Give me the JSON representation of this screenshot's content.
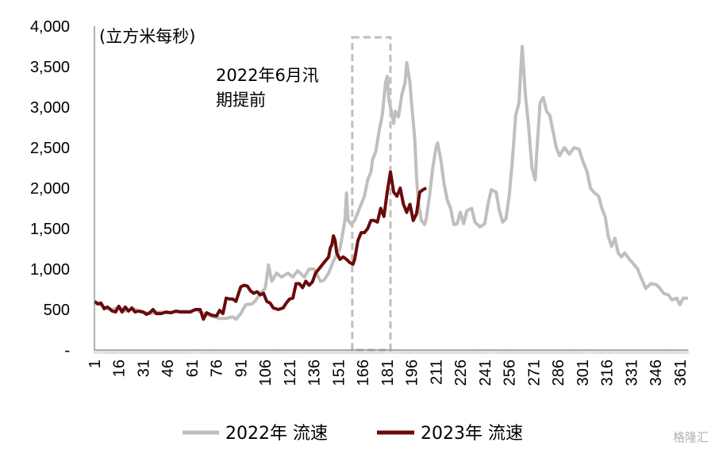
{
  "chart_data": {
    "type": "line",
    "unit_label": "(立方米每秒)",
    "annotation": "2022年6月汛期提前",
    "annotation_lines": [
      "2022年6月汛",
      "期提前"
    ],
    "ylim": [
      0,
      4000
    ],
    "yticks": [
      0,
      500,
      1000,
      1500,
      2000,
      2500,
      3000,
      3500,
      4000
    ],
    "ytick_labels": [
      "-",
      "500",
      "1,000",
      "1,500",
      "2,000",
      "2,500",
      "3,000",
      "3,500",
      "4,000"
    ],
    "xlim": [
      1,
      366
    ],
    "xticks": [
      1,
      16,
      31,
      46,
      61,
      76,
      91,
      106,
      121,
      136,
      151,
      166,
      181,
      196,
      211,
      226,
      241,
      256,
      271,
      286,
      301,
      316,
      331,
      346,
      361
    ],
    "xtick_labels": [
      "1",
      "16",
      "31",
      "46",
      "61",
      "76",
      "91",
      "106",
      "121",
      "136",
      "151",
      "166",
      "181",
      "196",
      "211",
      "226",
      "241",
      "256",
      "271",
      "286",
      "301",
      "316",
      "331",
      "346",
      "361"
    ],
    "highlight_range": [
      161,
      183
    ],
    "grid": false,
    "legend_position": "bottom",
    "series": [
      {
        "name": "2022年 流速",
        "color": "#bfbfbf",
        "points": [
          [
            1,
            600
          ],
          [
            4,
            570
          ],
          [
            8,
            520
          ],
          [
            12,
            500
          ],
          [
            16,
            530
          ],
          [
            20,
            480
          ],
          [
            25,
            510
          ],
          [
            30,
            470
          ],
          [
            35,
            450
          ],
          [
            40,
            470
          ],
          [
            45,
            460
          ],
          [
            50,
            470
          ],
          [
            55,
            480
          ],
          [
            60,
            480
          ],
          [
            63,
            500
          ],
          [
            66,
            470
          ],
          [
            70,
            440
          ],
          [
            74,
            410
          ],
          [
            78,
            390
          ],
          [
            82,
            390
          ],
          [
            86,
            410
          ],
          [
            88,
            380
          ],
          [
            91,
            450
          ],
          [
            94,
            560
          ],
          [
            98,
            570
          ],
          [
            100,
            610
          ],
          [
            103,
            700
          ],
          [
            106,
            760
          ],
          [
            108,
            1050
          ],
          [
            110,
            850
          ],
          [
            113,
            950
          ],
          [
            116,
            900
          ],
          [
            120,
            950
          ],
          [
            123,
            900
          ],
          [
            126,
            980
          ],
          [
            130,
            900
          ],
          [
            133,
            1000
          ],
          [
            136,
            1000
          ],
          [
            140,
            850
          ],
          [
            142,
            860
          ],
          [
            145,
            950
          ],
          [
            148,
            1100
          ],
          [
            152,
            1250
          ],
          [
            155,
            1600
          ],
          [
            156,
            1940
          ],
          [
            157,
            1600
          ],
          [
            159,
            1550
          ],
          [
            161,
            1600
          ],
          [
            163,
            1700
          ],
          [
            165,
            1800
          ],
          [
            167,
            1900
          ],
          [
            169,
            2100
          ],
          [
            171,
            2200
          ],
          [
            172,
            2350
          ],
          [
            174,
            2450
          ],
          [
            176,
            2700
          ],
          [
            178,
            2900
          ],
          [
            180,
            3300
          ],
          [
            181,
            3380
          ],
          [
            182,
            3100
          ],
          [
            183,
            3000
          ],
          [
            185,
            2800
          ],
          [
            186,
            2950
          ],
          [
            188,
            2880
          ],
          [
            190,
            3150
          ],
          [
            192,
            3300
          ],
          [
            193,
            3550
          ],
          [
            195,
            3300
          ],
          [
            196,
            3050
          ],
          [
            198,
            2600
          ],
          [
            199,
            2150
          ],
          [
            200,
            1850
          ],
          [
            202,
            1600
          ],
          [
            204,
            1550
          ],
          [
            205,
            1620
          ],
          [
            207,
            1900
          ],
          [
            209,
            2250
          ],
          [
            211,
            2500
          ],
          [
            212,
            2560
          ],
          [
            214,
            2350
          ],
          [
            216,
            2050
          ],
          [
            218,
            1850
          ],
          [
            220,
            1750
          ],
          [
            222,
            1550
          ],
          [
            224,
            1560
          ],
          [
            226,
            1700
          ],
          [
            228,
            1560
          ],
          [
            230,
            1720
          ],
          [
            233,
            1750
          ],
          [
            235,
            1580
          ],
          [
            238,
            1520
          ],
          [
            241,
            1560
          ],
          [
            243,
            1800
          ],
          [
            245,
            1980
          ],
          [
            248,
            1950
          ],
          [
            250,
            1720
          ],
          [
            252,
            1580
          ],
          [
            254,
            1620
          ],
          [
            256,
            1900
          ],
          [
            258,
            2350
          ],
          [
            260,
            2900
          ],
          [
            262,
            3050
          ],
          [
            263,
            3400
          ],
          [
            264,
            3750
          ],
          [
            266,
            3150
          ],
          [
            268,
            2750
          ],
          [
            270,
            2250
          ],
          [
            272,
            2100
          ],
          [
            273,
            2450
          ],
          [
            275,
            3050
          ],
          [
            277,
            3120
          ],
          [
            279,
            2950
          ],
          [
            281,
            2900
          ],
          [
            283,
            2700
          ],
          [
            285,
            2500
          ],
          [
            287,
            2400
          ],
          [
            290,
            2500
          ],
          [
            293,
            2420
          ],
          [
            296,
            2500
          ],
          [
            299,
            2480
          ],
          [
            301,
            2350
          ],
          [
            304,
            2200
          ],
          [
            306,
            2000
          ],
          [
            308,
            1950
          ],
          [
            311,
            1900
          ],
          [
            313,
            1750
          ],
          [
            315,
            1650
          ],
          [
            317,
            1400
          ],
          [
            319,
            1280
          ],
          [
            321,
            1380
          ],
          [
            323,
            1200
          ],
          [
            325,
            1150
          ],
          [
            327,
            1200
          ],
          [
            330,
            1120
          ],
          [
            333,
            1050
          ],
          [
            335,
            1000
          ],
          [
            337,
            900
          ],
          [
            340,
            760
          ],
          [
            343,
            820
          ],
          [
            346,
            810
          ],
          [
            348,
            780
          ],
          [
            351,
            700
          ],
          [
            354,
            680
          ],
          [
            356,
            620
          ],
          [
            359,
            640
          ],
          [
            361,
            560
          ],
          [
            363,
            640
          ],
          [
            366,
            640
          ]
        ]
      },
      {
        "name": "2023年 流速",
        "color": "#6b0a0a",
        "points": [
          [
            1,
            600
          ],
          [
            3,
            570
          ],
          [
            5,
            580
          ],
          [
            7,
            510
          ],
          [
            9,
            530
          ],
          [
            12,
            480
          ],
          [
            14,
            470
          ],
          [
            16,
            540
          ],
          [
            18,
            470
          ],
          [
            20,
            530
          ],
          [
            22,
            480
          ],
          [
            24,
            520
          ],
          [
            26,
            470
          ],
          [
            28,
            480
          ],
          [
            31,
            470
          ],
          [
            33,
            440
          ],
          [
            35,
            460
          ],
          [
            37,
            500
          ],
          [
            39,
            450
          ],
          [
            42,
            450
          ],
          [
            45,
            470
          ],
          [
            48,
            460
          ],
          [
            51,
            480
          ],
          [
            54,
            470
          ],
          [
            57,
            470
          ],
          [
            60,
            470
          ],
          [
            63,
            500
          ],
          [
            66,
            500
          ],
          [
            68,
            380
          ],
          [
            70,
            460
          ],
          [
            73,
            430
          ],
          [
            76,
            420
          ],
          [
            78,
            490
          ],
          [
            80,
            450
          ],
          [
            82,
            640
          ],
          [
            84,
            630
          ],
          [
            86,
            630
          ],
          [
            88,
            600
          ],
          [
            91,
            780
          ],
          [
            93,
            800
          ],
          [
            95,
            790
          ],
          [
            97,
            730
          ],
          [
            99,
            700
          ],
          [
            101,
            720
          ],
          [
            103,
            680
          ],
          [
            105,
            700
          ],
          [
            107,
            600
          ],
          [
            109,
            580
          ],
          [
            111,
            520
          ],
          [
            114,
            500
          ],
          [
            117,
            520
          ],
          [
            119,
            580
          ],
          [
            121,
            630
          ],
          [
            123,
            640
          ],
          [
            125,
            820
          ],
          [
            127,
            820
          ],
          [
            129,
            770
          ],
          [
            131,
            850
          ],
          [
            133,
            800
          ],
          [
            135,
            840
          ],
          [
            137,
            950
          ],
          [
            139,
            1000
          ],
          [
            141,
            1050
          ],
          [
            143,
            1100
          ],
          [
            145,
            1150
          ],
          [
            146,
            1260
          ],
          [
            147,
            1300
          ],
          [
            148,
            1410
          ],
          [
            149,
            1350
          ],
          [
            150,
            1200
          ],
          [
            152,
            1120
          ],
          [
            154,
            1150
          ],
          [
            156,
            1120
          ],
          [
            158,
            1080
          ],
          [
            160,
            1060
          ],
          [
            161,
            1120
          ],
          [
            163,
            1350
          ],
          [
            165,
            1450
          ],
          [
            167,
            1450
          ],
          [
            169,
            1500
          ],
          [
            171,
            1600
          ],
          [
            173,
            1600
          ],
          [
            175,
            1580
          ],
          [
            177,
            1750
          ],
          [
            179,
            1650
          ],
          [
            181,
            1950
          ],
          [
            183,
            2200
          ],
          [
            185,
            1950
          ],
          [
            187,
            1900
          ],
          [
            189,
            2000
          ],
          [
            191,
            1800
          ],
          [
            193,
            1700
          ],
          [
            195,
            1800
          ],
          [
            197,
            1600
          ],
          [
            199,
            1680
          ],
          [
            201,
            1950
          ],
          [
            203,
            1980
          ],
          [
            205,
            2000
          ]
        ]
      }
    ]
  },
  "watermark": "格隆汇"
}
